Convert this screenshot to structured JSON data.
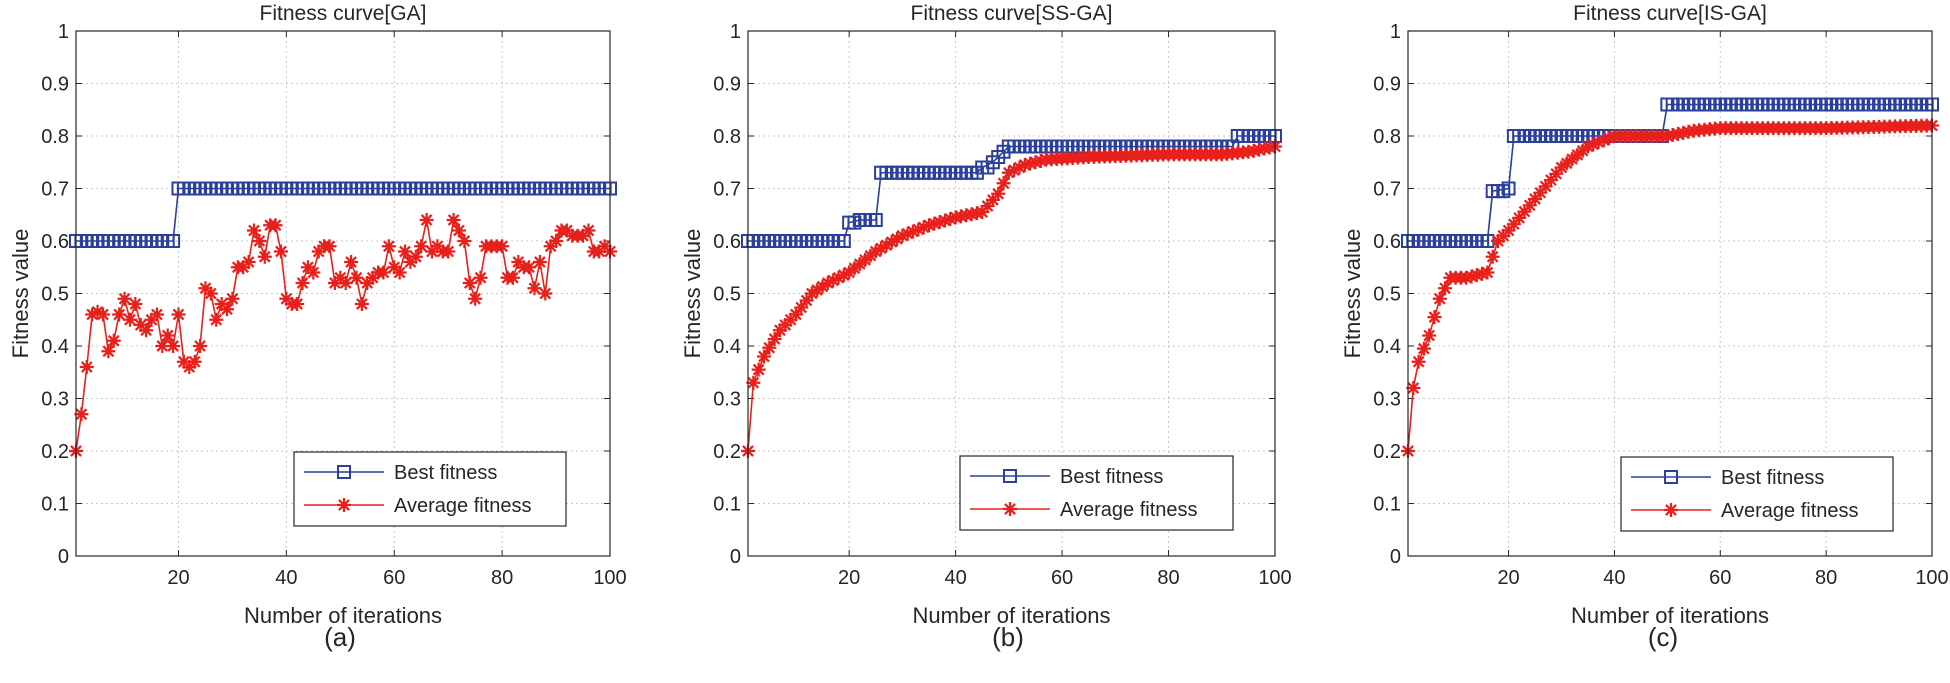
{
  "chart_data": [
    {
      "type": "line",
      "panel_label": "(a)",
      "title": "Fitness curve[GA]",
      "xlabel": "Number of iterations",
      "ylabel": "Fitness value",
      "xlim": [
        1,
        100
      ],
      "ylim": [
        0,
        1
      ],
      "xticks": [
        20,
        40,
        60,
        80,
        100
      ],
      "yticks": [
        0,
        0.1,
        0.2,
        0.3,
        0.4,
        0.5,
        0.6,
        0.7,
        0.8,
        0.9,
        1
      ],
      "grid": true,
      "legend_position": "bottom-right",
      "series": [
        {
          "name": "Best fitness",
          "color": "#2b3f9c",
          "marker": "square",
          "step": true,
          "points": [
            [
              1,
              0.6
            ],
            [
              19,
              0.6
            ],
            [
              20,
              0.7
            ],
            [
              100,
              0.7
            ]
          ]
        },
        {
          "name": "Average fitness",
          "color": "#e8201c",
          "marker": "star",
          "step": false,
          "points": [
            [
              1,
              0.2
            ],
            [
              2,
              0.27
            ],
            [
              3,
              0.36
            ],
            [
              4,
              0.46
            ],
            [
              5,
              0.465
            ],
            [
              6,
              0.46
            ],
            [
              7,
              0.39
            ],
            [
              8,
              0.41
            ],
            [
              9,
              0.46
            ],
            [
              10,
              0.49
            ],
            [
              11,
              0.45
            ],
            [
              12,
              0.48
            ],
            [
              13,
              0.44
            ],
            [
              14,
              0.43
            ],
            [
              15,
              0.45
            ],
            [
              16,
              0.46
            ],
            [
              17,
              0.4
            ],
            [
              18,
              0.42
            ],
            [
              19,
              0.4
            ],
            [
              20,
              0.46
            ],
            [
              21,
              0.37
            ],
            [
              22,
              0.36
            ],
            [
              23,
              0.37
            ],
            [
              24,
              0.4
            ],
            [
              25,
              0.51
            ],
            [
              26,
              0.5
            ],
            [
              27,
              0.45
            ],
            [
              28,
              0.48
            ],
            [
              29,
              0.47
            ],
            [
              30,
              0.49
            ],
            [
              31,
              0.55
            ],
            [
              32,
              0.55
            ],
            [
              33,
              0.56
            ],
            [
              34,
              0.62
            ],
            [
              35,
              0.6
            ],
            [
              36,
              0.57
            ],
            [
              37,
              0.63
            ],
            [
              38,
              0.63
            ],
            [
              39,
              0.58
            ],
            [
              40,
              0.49
            ],
            [
              41,
              0.48
            ],
            [
              42,
              0.48
            ],
            [
              43,
              0.52
            ],
            [
              44,
              0.55
            ],
            [
              45,
              0.54
            ],
            [
              46,
              0.58
            ],
            [
              47,
              0.59
            ],
            [
              48,
              0.59
            ],
            [
              49,
              0.52
            ],
            [
              50,
              0.53
            ],
            [
              51,
              0.52
            ],
            [
              52,
              0.56
            ],
            [
              53,
              0.53
            ],
            [
              54,
              0.48
            ],
            [
              55,
              0.52
            ],
            [
              56,
              0.53
            ],
            [
              57,
              0.54
            ],
            [
              58,
              0.54
            ],
            [
              59,
              0.59
            ],
            [
              60,
              0.55
            ],
            [
              61,
              0.54
            ],
            [
              62,
              0.58
            ],
            [
              63,
              0.56
            ],
            [
              64,
              0.57
            ],
            [
              65,
              0.59
            ],
            [
              66,
              0.64
            ],
            [
              67,
              0.58
            ],
            [
              68,
              0.59
            ],
            [
              69,
              0.58
            ],
            [
              70,
              0.58
            ],
            [
              71,
              0.64
            ],
            [
              72,
              0.62
            ],
            [
              73,
              0.6
            ],
            [
              74,
              0.52
            ],
            [
              75,
              0.49
            ],
            [
              76,
              0.53
            ],
            [
              77,
              0.59
            ],
            [
              78,
              0.59
            ],
            [
              79,
              0.59
            ],
            [
              80,
              0.59
            ],
            [
              81,
              0.53
            ],
            [
              82,
              0.53
            ],
            [
              83,
              0.56
            ],
            [
              84,
              0.55
            ],
            [
              85,
              0.55
            ],
            [
              86,
              0.51
            ],
            [
              87,
              0.56
            ],
            [
              88,
              0.5
            ],
            [
              89,
              0.59
            ],
            [
              90,
              0.6
            ],
            [
              91,
              0.62
            ],
            [
              92,
              0.62
            ],
            [
              93,
              0.61
            ],
            [
              94,
              0.61
            ],
            [
              95,
              0.61
            ],
            [
              96,
              0.62
            ],
            [
              97,
              0.58
            ],
            [
              98,
              0.58
            ],
            [
              99,
              0.59
            ],
            [
              100,
              0.58
            ]
          ]
        }
      ]
    },
    {
      "type": "line",
      "panel_label": "(b)",
      "title": "Fitness curve[SS-GA]",
      "xlabel": "Number of iterations",
      "ylabel": "Fitness value",
      "xlim": [
        1,
        100
      ],
      "ylim": [
        0,
        1
      ],
      "xticks": [
        20,
        40,
        60,
        80,
        100
      ],
      "yticks": [
        0,
        0.1,
        0.2,
        0.3,
        0.4,
        0.5,
        0.6,
        0.7,
        0.8,
        0.9,
        1
      ],
      "grid": true,
      "legend_position": "bottom-right",
      "series": [
        {
          "name": "Best fitness",
          "color": "#2b3f9c",
          "marker": "square",
          "step": true,
          "points": [
            [
              1,
              0.6
            ],
            [
              19,
              0.6
            ],
            [
              20,
              0.635
            ],
            [
              22,
              0.64
            ],
            [
              25,
              0.64
            ],
            [
              26,
              0.73
            ],
            [
              44,
              0.73
            ],
            [
              45,
              0.74
            ],
            [
              47,
              0.75
            ],
            [
              48,
              0.76
            ],
            [
              49,
              0.77
            ],
            [
              50,
              0.78
            ],
            [
              92,
              0.78
            ],
            [
              93,
              0.8
            ],
            [
              100,
              0.8
            ]
          ]
        },
        {
          "name": "Average fitness",
          "color": "#e8201c",
          "marker": "star",
          "step": false,
          "points": [
            [
              1,
              0.2
            ],
            [
              2,
              0.33
            ],
            [
              4,
              0.38
            ],
            [
              7,
              0.43
            ],
            [
              10,
              0.46
            ],
            [
              13,
              0.5
            ],
            [
              16,
              0.52
            ],
            [
              20,
              0.54
            ],
            [
              25,
              0.58
            ],
            [
              30,
              0.61
            ],
            [
              35,
              0.63
            ],
            [
              40,
              0.645
            ],
            [
              45,
              0.655
            ],
            [
              48,
              0.69
            ],
            [
              50,
              0.73
            ],
            [
              53,
              0.745
            ],
            [
              57,
              0.755
            ],
            [
              65,
              0.76
            ],
            [
              80,
              0.765
            ],
            [
              90,
              0.765
            ],
            [
              95,
              0.77
            ],
            [
              100,
              0.78
            ]
          ]
        }
      ]
    },
    {
      "type": "line",
      "panel_label": "(c)",
      "title": "Fitness curve[IS-GA]",
      "xlabel": "Number of iterations",
      "ylabel": "Fitness value",
      "xlim": [
        1,
        100
      ],
      "ylim": [
        0,
        1
      ],
      "xticks": [
        20,
        40,
        60,
        80,
        100
      ],
      "yticks": [
        0,
        0.1,
        0.2,
        0.3,
        0.4,
        0.5,
        0.6,
        0.7,
        0.8,
        0.9,
        1
      ],
      "grid": true,
      "legend_position": "bottom-right",
      "series": [
        {
          "name": "Best fitness",
          "color": "#2b3f9c",
          "marker": "square",
          "step": true,
          "points": [
            [
              1,
              0.6
            ],
            [
              16,
              0.6
            ],
            [
              17,
              0.695
            ],
            [
              20,
              0.7
            ],
            [
              21,
              0.8
            ],
            [
              49,
              0.8
            ],
            [
              50,
              0.86
            ],
            [
              100,
              0.86
            ]
          ]
        },
        {
          "name": "Average fitness",
          "color": "#e8201c",
          "marker": "star",
          "step": false,
          "points": [
            [
              1,
              0.2
            ],
            [
              2,
              0.32
            ],
            [
              3,
              0.37
            ],
            [
              5,
              0.42
            ],
            [
              7,
              0.49
            ],
            [
              9,
              0.53
            ],
            [
              12,
              0.53
            ],
            [
              16,
              0.54
            ],
            [
              18,
              0.6
            ],
            [
              20,
              0.62
            ],
            [
              25,
              0.68
            ],
            [
              30,
              0.74
            ],
            [
              35,
              0.78
            ],
            [
              40,
              0.8
            ],
            [
              45,
              0.8
            ],
            [
              50,
              0.8
            ],
            [
              55,
              0.81
            ],
            [
              60,
              0.815
            ],
            [
              80,
              0.815
            ],
            [
              100,
              0.82
            ]
          ]
        }
      ]
    }
  ]
}
